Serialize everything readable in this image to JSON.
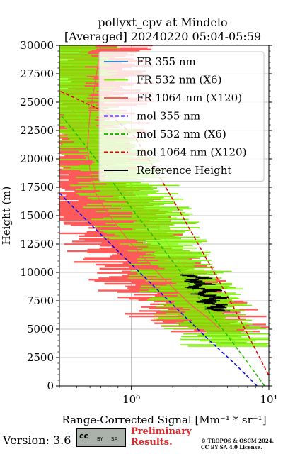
{
  "title": {
    "line1": "pollyxt_cpv at Mindelo",
    "line2": "[Averaged] 20240220 05:04-05:59"
  },
  "footer": {
    "version": "Version: 3.6",
    "preliminary_line1": "Preliminary",
    "preliminary_line2": "Results.",
    "copyright_line1": "© TROPOS & OSCM 2024.",
    "copyright_line2": "CC BY SA 4.0 License.",
    "license_badge": [
      "cc",
      "BY",
      "SA"
    ]
  },
  "chart_data": {
    "type": "line",
    "xlabel": "Range-Corrected Signal [Mm⁻¹ * sr⁻¹]",
    "ylabel": "Height (m)",
    "xscale": "log",
    "xlim": [
      0.3,
      10
    ],
    "ylim": [
      0,
      30000
    ],
    "xticks": [
      {
        "value": 1,
        "label": "10⁰"
      },
      {
        "value": 10,
        "label": "10¹"
      }
    ],
    "yticks": [
      0,
      2500,
      5000,
      7500,
      10000,
      12500,
      15000,
      17500,
      20000,
      22500,
      25000,
      27500,
      30000
    ],
    "ytick_labels": [
      "0",
      "2500",
      "5000",
      "7500",
      "10000",
      "12500",
      "15000",
      "17500",
      "20000",
      "22500",
      "25000",
      "27500",
      "30000"
    ],
    "grid": true,
    "legend_position": "top-right",
    "colors": {
      "fr355": "#2a8fd6",
      "fr532": "#7cf000",
      "fr1064": "#ff5a5a",
      "mol355": "#0a0aee",
      "mol532": "#22bb00",
      "mol1064": "#e00000",
      "ref": "#000000"
    },
    "series": [
      {
        "name": "FR 355 nm",
        "style": "solid",
        "color": "#2a8fd6",
        "points": []
      },
      {
        "name": "FR 532 nm (X6)",
        "style": "solid",
        "color": "#7cf000",
        "points": [
          [
            5.9,
            3700
          ],
          [
            5.0,
            4500
          ],
          [
            4.3,
            5500
          ],
          [
            3.8,
            6500
          ],
          [
            3.4,
            7500
          ],
          [
            3.0,
            8500
          ],
          [
            2.6,
            9700
          ],
          [
            2.2,
            11000
          ],
          [
            1.85,
            12500
          ],
          [
            1.55,
            14000
          ],
          [
            1.3,
            15500
          ],
          [
            1.1,
            17000
          ],
          [
            0.9,
            18500
          ],
          [
            0.72,
            20000
          ],
          [
            0.58,
            21500
          ],
          [
            0.47,
            23000
          ],
          [
            0.38,
            24500
          ]
        ]
      },
      {
        "name": "FR 1064 nm (X120)",
        "style": "solid",
        "color": "#ff5a5a",
        "points": [
          [
            4.4,
            5000
          ],
          [
            3.6,
            6000
          ],
          [
            2.8,
            7000
          ],
          [
            2.2,
            8200
          ],
          [
            1.7,
            9500
          ],
          [
            1.3,
            11000
          ],
          [
            1.0,
            12500
          ],
          [
            0.8,
            14000
          ],
          [
            0.65,
            15500
          ],
          [
            0.55,
            17000
          ],
          [
            0.5,
            19000
          ],
          [
            0.48,
            21000
          ],
          [
            0.5,
            24000
          ],
          [
            0.55,
            27000
          ],
          [
            0.6,
            30000
          ]
        ]
      },
      {
        "name": "mol 355 nm",
        "style": "dashed",
        "color": "#0a0aee",
        "points": [
          [
            8.2,
            0
          ],
          [
            5.6,
            2000
          ],
          [
            3.7,
            4000
          ],
          [
            2.5,
            6000
          ],
          [
            1.7,
            8000
          ],
          [
            1.15,
            10000
          ],
          [
            0.78,
            12000
          ],
          [
            0.53,
            14000
          ],
          [
            0.36,
            16000
          ],
          [
            0.3,
            17000
          ]
        ]
      },
      {
        "name": "mol 532 nm (X6)",
        "style": "dashed",
        "color": "#22bb00",
        "points": [
          [
            9.3,
            0
          ],
          [
            6.6,
            2500
          ],
          [
            4.6,
            5000
          ],
          [
            3.2,
            7500
          ],
          [
            2.3,
            10000
          ],
          [
            1.6,
            12500
          ],
          [
            1.1,
            15000
          ],
          [
            0.78,
            17500
          ],
          [
            0.55,
            20000
          ],
          [
            0.38,
            22500
          ],
          [
            0.3,
            24000
          ]
        ]
      },
      {
        "name": "mol 1064 nm (X120)",
        "style": "dashed",
        "color": "#e00000",
        "points": [
          [
            9.9,
            1000
          ],
          [
            7.4,
            4000
          ],
          [
            5.5,
            7000
          ],
          [
            4.0,
            10000
          ],
          [
            2.9,
            13000
          ],
          [
            2.1,
            16000
          ],
          [
            1.5,
            19000
          ],
          [
            1.05,
            22000
          ],
          [
            0.68,
            24000
          ],
          [
            0.45,
            25000
          ],
          [
            0.3,
            26000
          ]
        ]
      },
      {
        "name": "Reference Height",
        "style": "solid",
        "color": "#000000",
        "points": [
          [
            2.4,
            9800
          ],
          [
            3.3,
            9500
          ],
          [
            2.6,
            9200
          ],
          [
            3.6,
            9000
          ],
          [
            2.8,
            8700
          ],
          [
            3.9,
            8400
          ],
          [
            3.1,
            8100
          ],
          [
            4.2,
            7800
          ],
          [
            3.4,
            7400
          ],
          [
            4.5,
            7100
          ],
          [
            3.7,
            6800
          ],
          [
            4.9,
            6600
          ]
        ]
      }
    ]
  }
}
